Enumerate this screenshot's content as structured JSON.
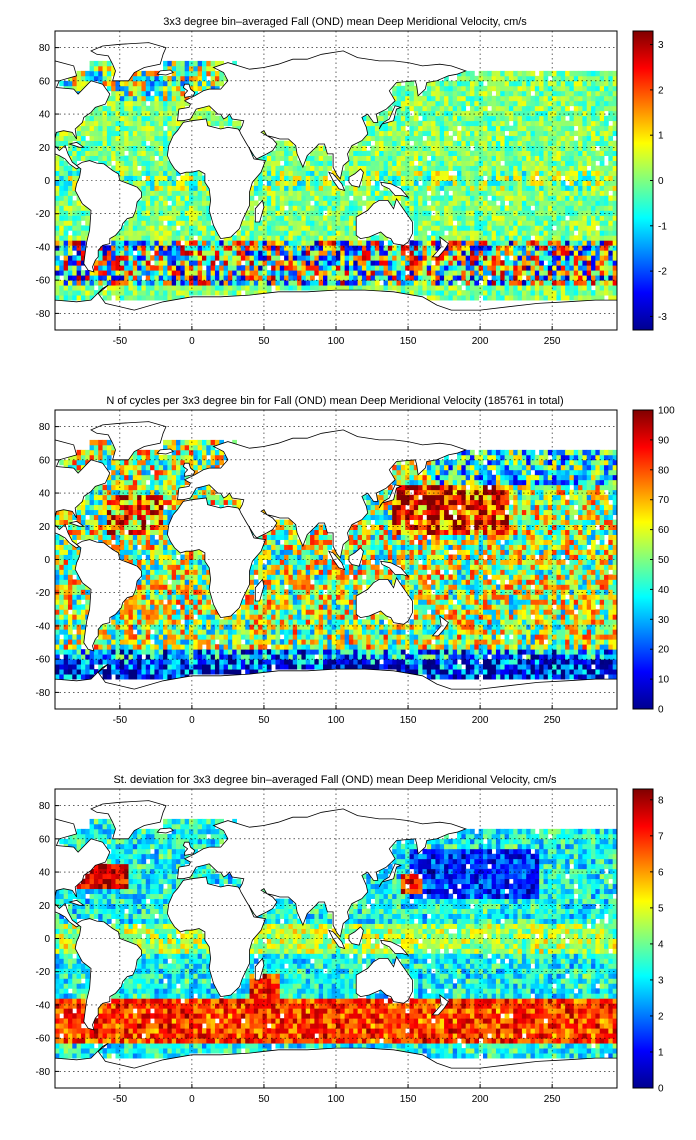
{
  "figure": {
    "title": ""
  },
  "chart_data": [
    {
      "type": "heatmap",
      "title": "3x3 degree bin–averaged Fall (OND) mean Deep Meridional Velocity, cm/s",
      "xlabel": "",
      "ylabel": "",
      "xlim": [
        -95,
        295
      ],
      "ylim": [
        -90,
        90
      ],
      "xticks": [
        -50,
        0,
        50,
        100,
        150,
        200,
        250
      ],
      "yticks": [
        -80,
        -60,
        -40,
        -20,
        0,
        20,
        40,
        60,
        80
      ],
      "grid": true,
      "colormap": "jet",
      "bin_size_deg": 3,
      "colorbar": {
        "min": -3.3,
        "max": 3.3,
        "ticks": [
          -3,
          -2,
          -1,
          0,
          1,
          2,
          3
        ]
      },
      "field": "mean_meridional_velocity"
    },
    {
      "type": "heatmap",
      "title": "N of cycles per 3x3 degree bin for Fall (OND) mean Deep Meridional Velocity (185761 in total)",
      "xlabel": "",
      "ylabel": "",
      "xlim": [
        -95,
        295
      ],
      "ylim": [
        -90,
        90
      ],
      "xticks": [
        -50,
        0,
        50,
        100,
        150,
        200,
        250
      ],
      "yticks": [
        -80,
        -60,
        -40,
        -20,
        0,
        20,
        40,
        60,
        80
      ],
      "grid": true,
      "colormap": "jet",
      "bin_size_deg": 3,
      "colorbar": {
        "min": 0,
        "max": 100,
        "ticks": [
          0,
          10,
          20,
          30,
          40,
          50,
          60,
          70,
          80,
          90,
          100
        ]
      },
      "field": "cycle_count"
    },
    {
      "type": "heatmap",
      "title": "St. deviation for 3x3 degree bin–averaged Fall (OND) mean Deep Meridional Velocity, cm/s",
      "xlabel": "",
      "ylabel": "",
      "xlim": [
        -95,
        295
      ],
      "ylim": [
        -90,
        90
      ],
      "xticks": [
        -50,
        0,
        50,
        100,
        150,
        200,
        250
      ],
      "yticks": [
        -80,
        -60,
        -40,
        -20,
        0,
        20,
        40,
        60,
        80
      ],
      "grid": true,
      "colormap": "jet",
      "bin_size_deg": 3,
      "colorbar": {
        "min": 0,
        "max": 8.3,
        "ticks": [
          0,
          1,
          2,
          3,
          4,
          5,
          6,
          7,
          8
        ]
      },
      "field": "std_meridional_velocity"
    }
  ]
}
